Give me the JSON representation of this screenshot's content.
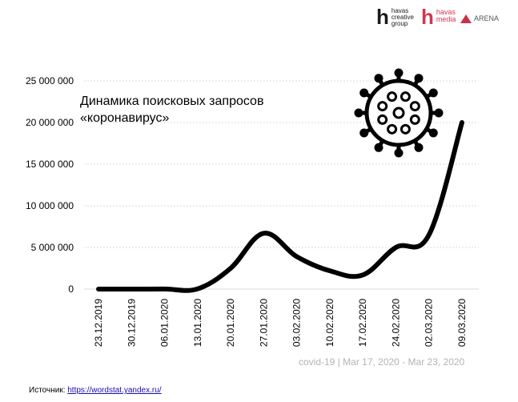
{
  "brands": {
    "havas": {
      "mark": "h",
      "line1": "havas",
      "line2": "creative",
      "line3": "group"
    },
    "media": {
      "mark": "h",
      "line1": "havas",
      "line2": "media"
    },
    "arena": {
      "label": "ARENA"
    }
  },
  "footer": {
    "text": "covid-19 | Mar 17, 2020 - Mar 23, 2020"
  },
  "source": {
    "label": "Источник: ",
    "link": "https://wordstat.yandex.ru/"
  },
  "icon": {
    "name": "coronavirus-icon"
  },
  "chart_data": {
    "type": "line",
    "title": "Динамика поисковых запросов «коронавирус»",
    "xlabel": "",
    "ylabel": "",
    "ylim": [
      0,
      25000000
    ],
    "yticks": [
      0,
      5000000,
      10000000,
      15000000,
      20000000,
      25000000
    ],
    "ytick_labels": [
      "0",
      "5 000 000",
      "10 000 000",
      "15 000 000",
      "20 000 000",
      "25 000 000"
    ],
    "grid": true,
    "categories": [
      "23.12.2019",
      "30.12.2019",
      "06.01.2020",
      "13.01.2020",
      "20.01.2020",
      "27.01.2020",
      "03.02.2020",
      "10.02.2020",
      "17.02.2020",
      "24.02.2020",
      "02.03.2020",
      "09.03.2020"
    ],
    "series": [
      {
        "values": [
          5000,
          6000,
          8000,
          30000,
          2500000,
          6700000,
          3900000,
          2200000,
          1700000,
          5000000,
          6500000,
          20000000
        ]
      }
    ],
    "line_color": "#000000"
  }
}
